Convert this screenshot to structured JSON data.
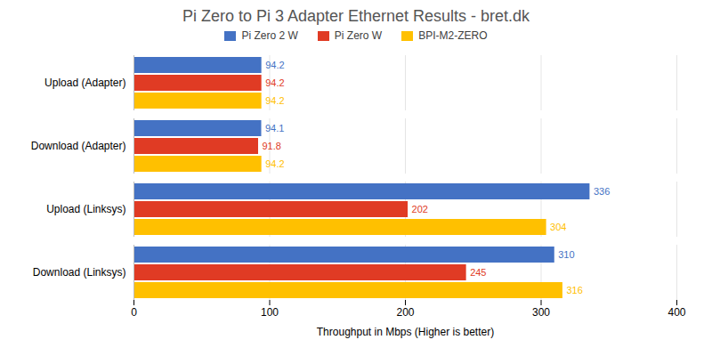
{
  "chart_data": {
    "type": "bar",
    "orientation": "horizontal",
    "title": "Pi Zero to Pi 3 Adapter Ethernet Results - bret.dk",
    "categories": [
      "Upload (Adapter)",
      "Download (Adapter)",
      "Upload (Linksys)",
      "Download (Linksys)"
    ],
    "series": [
      {
        "name": "Pi Zero 2 W",
        "color": "#4472C4",
        "values": [
          94.2,
          94.1,
          336,
          310
        ]
      },
      {
        "name": "Pi Zero W",
        "color": "#E03B24",
        "values": [
          94.2,
          91.8,
          202,
          245
        ]
      },
      {
        "name": "BPI-M2-ZERO",
        "color": "#FFC000",
        "values": [
          94.2,
          94.2,
          304,
          316
        ]
      }
    ],
    "xlabel": "Throughput in Mbps (Higher is better)",
    "xlim": [
      0,
      400
    ],
    "xticks": [
      0,
      100,
      200,
      300,
      400
    ],
    "grid": true,
    "legend": "top",
    "data_labels": true
  }
}
